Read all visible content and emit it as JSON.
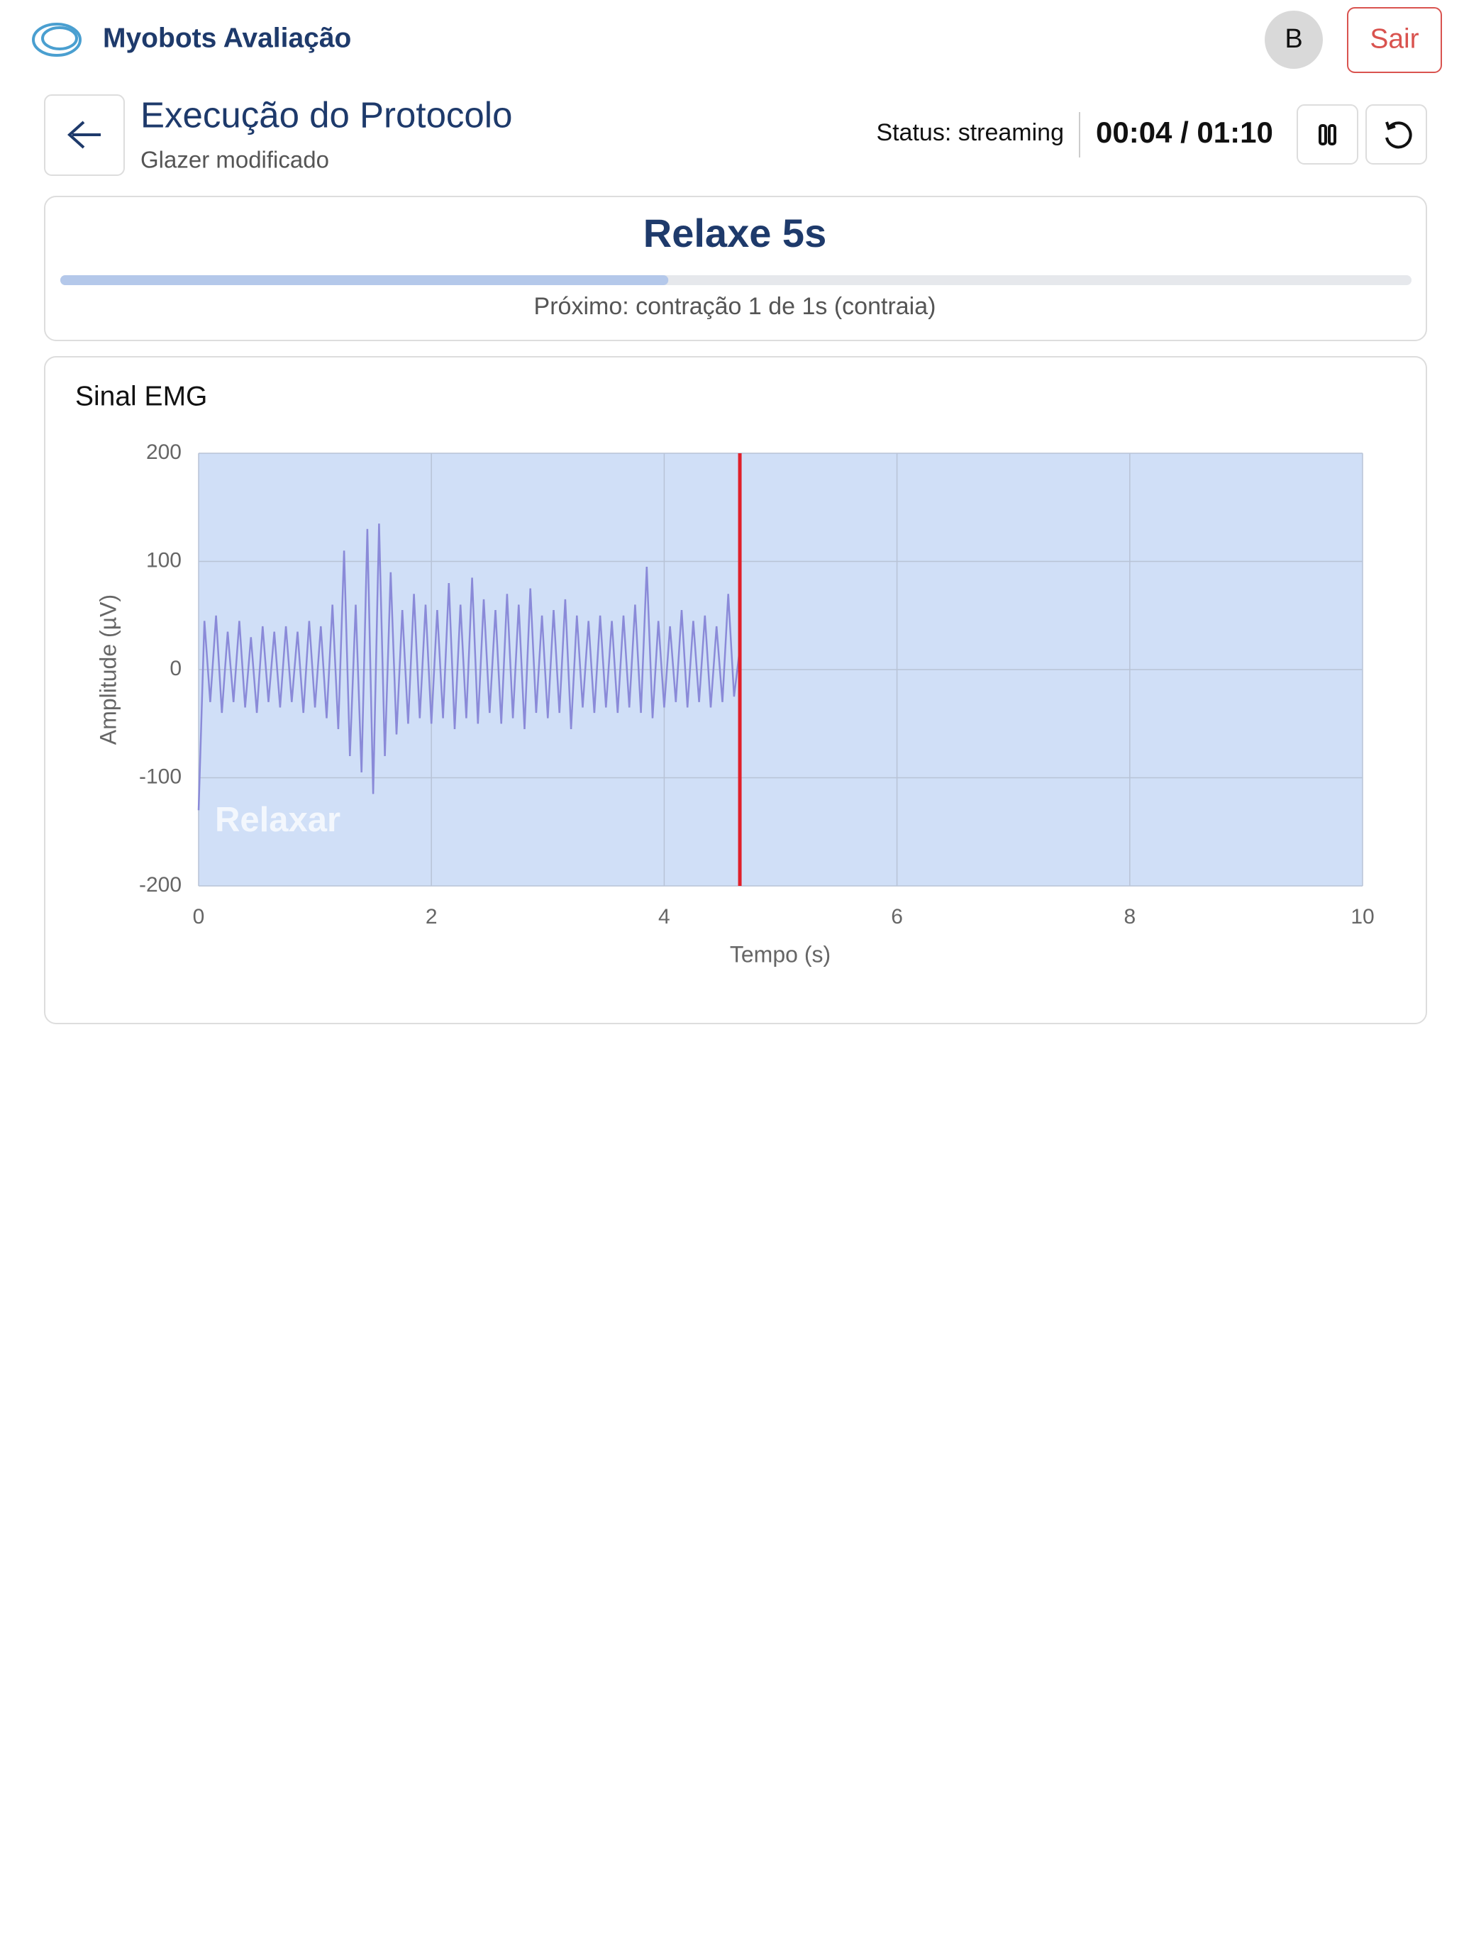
{
  "header": {
    "brand": "Myobots Avaliação",
    "avatar": "B",
    "logout": "Sair"
  },
  "page": {
    "title": "Execução do Protocolo",
    "subtitle": "Glazer modificado",
    "status": "Status: streaming",
    "timer": "00:04 / 01:10"
  },
  "phase": {
    "title": "Relaxe 5s",
    "progress": 0.45,
    "next": "Próximo: contração 1 de 1s (contraia)"
  },
  "chart_data": {
    "type": "line",
    "title": "Sinal EMG",
    "x_label": "Tempo (s)",
    "y_label": "Amplitude (µV)",
    "xlim": [
      0,
      10
    ],
    "ylim": [
      -200,
      200
    ],
    "xticks": [
      0,
      2,
      4,
      6,
      8,
      10
    ],
    "yticks": [
      -200,
      -100,
      0,
      100,
      200
    ],
    "grid": true,
    "background": "#d0dff7",
    "region_label": "Relaxar",
    "cursor": {
      "x": 4.65,
      "color": "#e0202a"
    },
    "color": "#8a8ad8",
    "x": [
      0,
      0.05,
      0.1,
      0.15,
      0.2,
      0.25,
      0.3,
      0.35,
      0.4,
      0.45,
      0.5,
      0.55,
      0.6,
      0.65,
      0.7,
      0.75,
      0.8,
      0.85,
      0.9,
      0.95,
      1,
      1.05,
      1.1,
      1.15,
      1.2,
      1.25,
      1.3,
      1.35,
      1.4,
      1.45,
      1.5,
      1.55,
      1.6,
      1.65,
      1.7,
      1.75,
      1.8,
      1.85,
      1.9,
      1.95,
      2,
      2.05,
      2.1,
      2.15,
      2.2,
      2.25,
      2.3,
      2.35,
      2.4,
      2.45,
      2.5,
      2.55,
      2.6,
      2.65,
      2.7,
      2.75,
      2.8,
      2.85,
      2.9,
      2.95,
      3,
      3.05,
      3.1,
      3.15,
      3.2,
      3.25,
      3.3,
      3.35,
      3.4,
      3.45,
      3.5,
      3.55,
      3.6,
      3.65,
      3.7,
      3.75,
      3.8,
      3.85,
      3.9,
      3.95,
      4,
      4.05,
      4.1,
      4.15,
      4.2,
      4.25,
      4.3,
      4.35,
      4.4,
      4.45,
      4.5,
      4.55,
      4.6,
      4.65
    ],
    "values": [
      -130,
      45,
      -30,
      50,
      -40,
      35,
      -30,
      45,
      -35,
      30,
      -40,
      40,
      -30,
      35,
      -35,
      40,
      -30,
      35,
      -40,
      45,
      -35,
      40,
      -45,
      60,
      -55,
      110,
      -80,
      60,
      -95,
      130,
      -115,
      135,
      -80,
      90,
      -60,
      55,
      -50,
      70,
      -45,
      60,
      -50,
      55,
      -45,
      80,
      -55,
      60,
      -45,
      85,
      -50,
      65,
      -40,
      55,
      -50,
      70,
      -45,
      60,
      -55,
      75,
      -40,
      50,
      -45,
      55,
      -40,
      65,
      -55,
      50,
      -35,
      45,
      -40,
      50,
      -35,
      45,
      -40,
      50,
      -35,
      60,
      -40,
      95,
      -45,
      45,
      -35,
      40,
      -30,
      55,
      -35,
      45,
      -30,
      50,
      -35,
      40,
      -30,
      70,
      -25,
      20
    ]
  }
}
